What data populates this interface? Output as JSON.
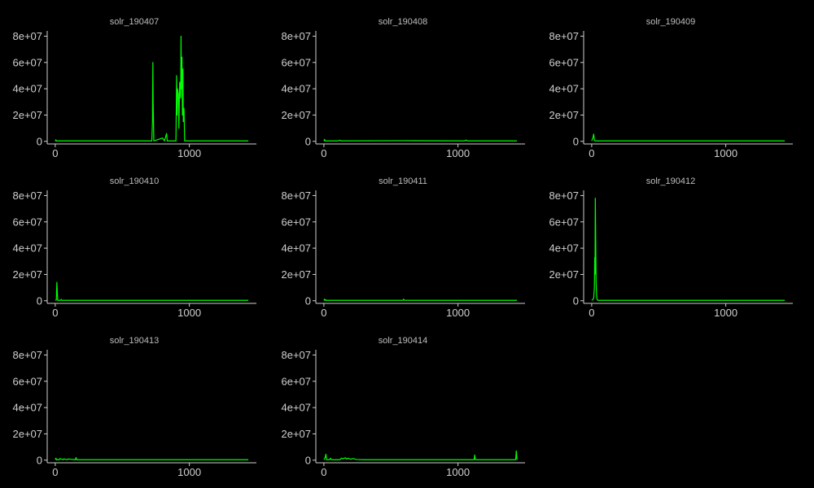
{
  "chart_data": [
    {
      "type": "line",
      "title": "solr_190407",
      "xlim": [
        -60,
        1500
      ],
      "ylim": [
        -2000000,
        84000000
      ],
      "x_ticks": [
        0,
        1000
      ],
      "x_tick_labels": [
        "0",
        "1000"
      ],
      "y_ticks": [
        0,
        20000000,
        40000000,
        60000000,
        80000000
      ],
      "y_tick_labels": [
        "0",
        "2e+07",
        "4e+07",
        "6e+07",
        "8e+07"
      ],
      "series": [
        {
          "color": "#00ff00",
          "x": [
            0,
            5,
            6,
            8,
            720,
            725,
            728,
            730,
            735,
            800,
            815,
            830,
            835,
            900,
            905,
            908,
            912,
            918,
            922,
            928,
            935,
            938,
            940,
            945,
            948,
            952,
            955,
            960,
            965,
            1440
          ],
          "y": [
            300000,
            1200000,
            300000,
            300000,
            300000,
            15000000,
            60000000,
            30000000,
            300000,
            2500000,
            300000,
            6000000,
            300000,
            300000,
            50000000,
            20000000,
            40000000,
            36000000,
            10000000,
            45000000,
            33000000,
            80000000,
            40000000,
            64000000,
            20000000,
            55000000,
            15000000,
            25000000,
            300000,
            300000
          ]
        }
      ]
    },
    {
      "type": "line",
      "title": "solr_190408",
      "xlim": [
        -60,
        1500
      ],
      "ylim": [
        -2000000,
        84000000
      ],
      "x_ticks": [
        0,
        1000
      ],
      "x_tick_labels": [
        "0",
        "1000"
      ],
      "y_ticks": [
        0,
        20000000,
        40000000,
        60000000,
        80000000
      ],
      "y_tick_labels": [
        "0",
        "2e+07",
        "4e+07",
        "6e+07",
        "8e+07"
      ],
      "series": [
        {
          "color": "#00ff00",
          "x": [
            0,
            5,
            8,
            12,
            100,
            120,
            130,
            600,
            1050,
            1060,
            1070,
            1440
          ],
          "y": [
            300000,
            1500000,
            300000,
            300000,
            300000,
            800000,
            300000,
            500000,
            300000,
            1000000,
            300000,
            300000
          ]
        }
      ]
    },
    {
      "type": "line",
      "title": "solr_190409",
      "xlim": [
        -60,
        1500
      ],
      "ylim": [
        -2000000,
        84000000
      ],
      "x_ticks": [
        0,
        1000
      ],
      "x_tick_labels": [
        "0",
        "1000"
      ],
      "y_ticks": [
        0,
        20000000,
        40000000,
        60000000,
        80000000
      ],
      "y_tick_labels": [
        "0",
        "2e+07",
        "4e+07",
        "6e+07",
        "8e+07"
      ],
      "series": [
        {
          "color": "#00ff00",
          "x": [
            0,
            5,
            10,
            15,
            20,
            25,
            30,
            1440
          ],
          "y": [
            300000,
            1500000,
            3000000,
            5500000,
            1000000,
            300000,
            300000,
            300000
          ]
        }
      ]
    },
    {
      "type": "line",
      "title": "solr_190410",
      "xlim": [
        -60,
        1500
      ],
      "ylim": [
        -2000000,
        84000000
      ],
      "x_ticks": [
        0,
        1000
      ],
      "x_tick_labels": [
        "0",
        "1000"
      ],
      "y_ticks": [
        0,
        20000000,
        40000000,
        60000000,
        80000000
      ],
      "y_tick_labels": [
        "0",
        "2e+07",
        "4e+07",
        "6e+07",
        "8e+07"
      ],
      "series": [
        {
          "color": "#00ff00",
          "x": [
            0,
            8,
            12,
            15,
            18,
            40,
            45,
            50,
            1440
          ],
          "y": [
            300000,
            500000,
            14000000,
            7000000,
            300000,
            300000,
            1000000,
            300000,
            300000
          ]
        }
      ]
    },
    {
      "type": "line",
      "title": "solr_190411",
      "xlim": [
        -60,
        1500
      ],
      "ylim": [
        -2000000,
        84000000
      ],
      "x_ticks": [
        0,
        1000
      ],
      "x_tick_labels": [
        "0",
        "1000"
      ],
      "y_ticks": [
        0,
        20000000,
        40000000,
        60000000,
        80000000
      ],
      "y_tick_labels": [
        "0",
        "2e+07",
        "4e+07",
        "6e+07",
        "8e+07"
      ],
      "series": [
        {
          "color": "#00ff00",
          "x": [
            0,
            5,
            8,
            12,
            15,
            590,
            595,
            600,
            1440
          ],
          "y": [
            300000,
            1200000,
            300000,
            800000,
            300000,
            300000,
            1200000,
            300000,
            300000
          ]
        }
      ]
    },
    {
      "type": "line",
      "title": "solr_190412",
      "xlim": [
        -60,
        1500
      ],
      "ylim": [
        -2000000,
        84000000
      ],
      "x_ticks": [
        0,
        1000
      ],
      "x_tick_labels": [
        "0",
        "1000"
      ],
      "y_ticks": [
        0,
        20000000,
        40000000,
        60000000,
        80000000
      ],
      "y_tick_labels": [
        "0",
        "2e+07",
        "4e+07",
        "6e+07",
        "8e+07"
      ],
      "series": [
        {
          "color": "#00ff00",
          "x": [
            0,
            10,
            15,
            20,
            23,
            25,
            27,
            30,
            33,
            36,
            40,
            45,
            1440
          ],
          "y": [
            300000,
            1000000,
            2000000,
            10000000,
            33000000,
            20000000,
            78000000,
            45000000,
            15000000,
            5000000,
            1000000,
            300000,
            300000
          ]
        }
      ]
    },
    {
      "type": "line",
      "title": "solr_190413",
      "xlim": [
        -60,
        1500
      ],
      "ylim": [
        -2000000,
        84000000
      ],
      "x_ticks": [
        0,
        1000
      ],
      "x_tick_labels": [
        "0",
        "1000"
      ],
      "y_ticks": [
        0,
        20000000,
        40000000,
        60000000,
        80000000
      ],
      "y_tick_labels": [
        "0",
        "2e+07",
        "4e+07",
        "6e+07",
        "8e+07"
      ],
      "series": [
        {
          "color": "#00ff00",
          "x": [
            0,
            5,
            10,
            30,
            35,
            60,
            65,
            90,
            95,
            150,
            155,
            160,
            1440
          ],
          "y": [
            300000,
            1500000,
            300000,
            300000,
            1200000,
            300000,
            1000000,
            300000,
            900000,
            300000,
            2000000,
            300000,
            300000
          ]
        }
      ]
    },
    {
      "type": "line",
      "title": "solr_190414",
      "xlim": [
        -60,
        1500
      ],
      "ylim": [
        -2000000,
        84000000
      ],
      "x_ticks": [
        0,
        1000
      ],
      "x_tick_labels": [
        "0",
        "1000"
      ],
      "y_ticks": [
        0,
        20000000,
        40000000,
        60000000,
        80000000
      ],
      "y_tick_labels": [
        "0",
        "2e+07",
        "4e+07",
        "6e+07",
        "8e+07"
      ],
      "series": [
        {
          "color": "#00ff00",
          "x": [
            0,
            10,
            15,
            20,
            40,
            50,
            55,
            120,
            130,
            140,
            160,
            170,
            180,
            200,
            220,
            240,
            300,
            1120,
            1125,
            1130,
            1430,
            1435,
            1440
          ],
          "y": [
            300000,
            2000000,
            4500000,
            300000,
            300000,
            1500000,
            300000,
            300000,
            1500000,
            1000000,
            1800000,
            800000,
            1500000,
            700000,
            1200000,
            500000,
            300000,
            300000,
            4000000,
            300000,
            300000,
            7000000,
            300000
          ]
        }
      ]
    }
  ]
}
